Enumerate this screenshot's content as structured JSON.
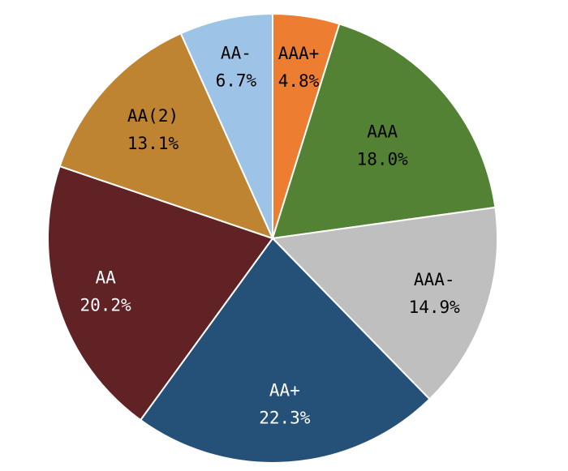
{
  "chart_data": {
    "type": "pie",
    "title": "",
    "start_angle_deg": 0,
    "direction": "clockwise",
    "slices": [
      {
        "label": "AAA+",
        "value": 4.8,
        "display": "4.8%",
        "color": "#ED7D31",
        "text_color": "#000000"
      },
      {
        "label": "AAA",
        "value": 18.0,
        "display": "18.0%",
        "color": "#548235",
        "text_color": "#000000"
      },
      {
        "label": "AAA-",
        "value": 14.9,
        "display": "14.9%",
        "color": "#BFBFBF",
        "text_color": "#000000"
      },
      {
        "label": "AA+",
        "value": 22.3,
        "display": "22.3%",
        "color": "#255179",
        "text_color": "#FFFFFF"
      },
      {
        "label": "AA",
        "value": 20.2,
        "display": "20.2%",
        "color": "#602224",
        "text_color": "#FFFFFF"
      },
      {
        "label": "AA(2)",
        "value": 13.1,
        "display": "13.1%",
        "color": "#BE8431",
        "text_color": "#000000"
      },
      {
        "label": "AA-",
        "value": 6.7,
        "display": "6.7%",
        "color": "#9DC3E6",
        "text_color": "#000000"
      }
    ]
  }
}
